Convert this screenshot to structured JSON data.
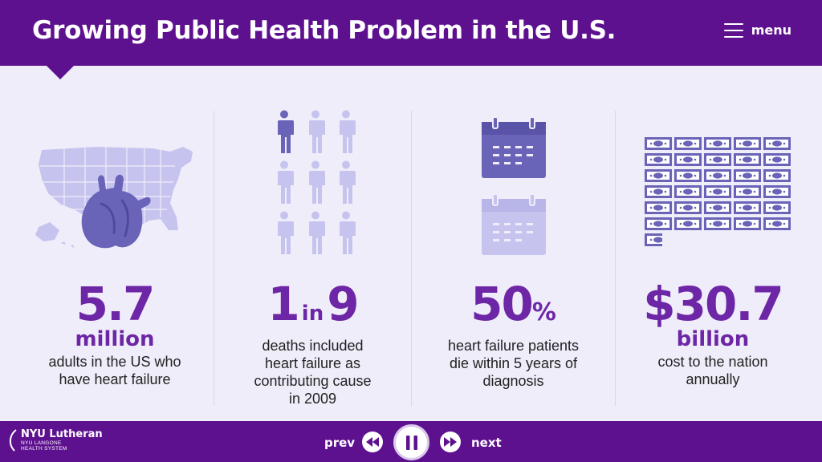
{
  "header": {
    "title": "Growing Public Health Problem in the U.S.",
    "menu_label": "menu"
  },
  "stats": [
    {
      "value": "5.7",
      "unit": "million",
      "description_lines": [
        "adults in the US who",
        "have heart failure"
      ]
    },
    {
      "value_a": "1",
      "value_in": "in",
      "value_b": "9",
      "description_lines": [
        "deaths included",
        "heart failure as",
        "contributing cause",
        "in 2009"
      ]
    },
    {
      "value": "50",
      "unit": "%",
      "description_lines": [
        "heart failure patients",
        "die within 5 years of",
        "diagnosis"
      ]
    },
    {
      "value": "$30.7",
      "unit": "billion",
      "description_lines": [
        "cost to the nation",
        "annually"
      ]
    }
  ],
  "people_icon": {
    "total": 9,
    "highlighted": 1
  },
  "money_icon": {
    "full_bills": 30,
    "partial_bills": 1
  },
  "footer": {
    "logo_main": "NYU Lutheran",
    "logo_sub_1": "NYU LANGONE",
    "logo_sub_2": "HEALTH SYSTEM",
    "prev_label": "prev",
    "next_label": "next"
  },
  "colors": {
    "brand_purple": "#5e118f",
    "stat_purple": "#6d26a6",
    "icon_dark": "#6a64b8",
    "icon_light": "#c6c4ef",
    "background": "#efedf9"
  },
  "icons": [
    "us-map-icon",
    "heart-icon",
    "person-icon",
    "calendar-icon",
    "dollar-bill-icon",
    "rewind-icon",
    "pause-icon",
    "fast-forward-icon",
    "menu-icon"
  ]
}
